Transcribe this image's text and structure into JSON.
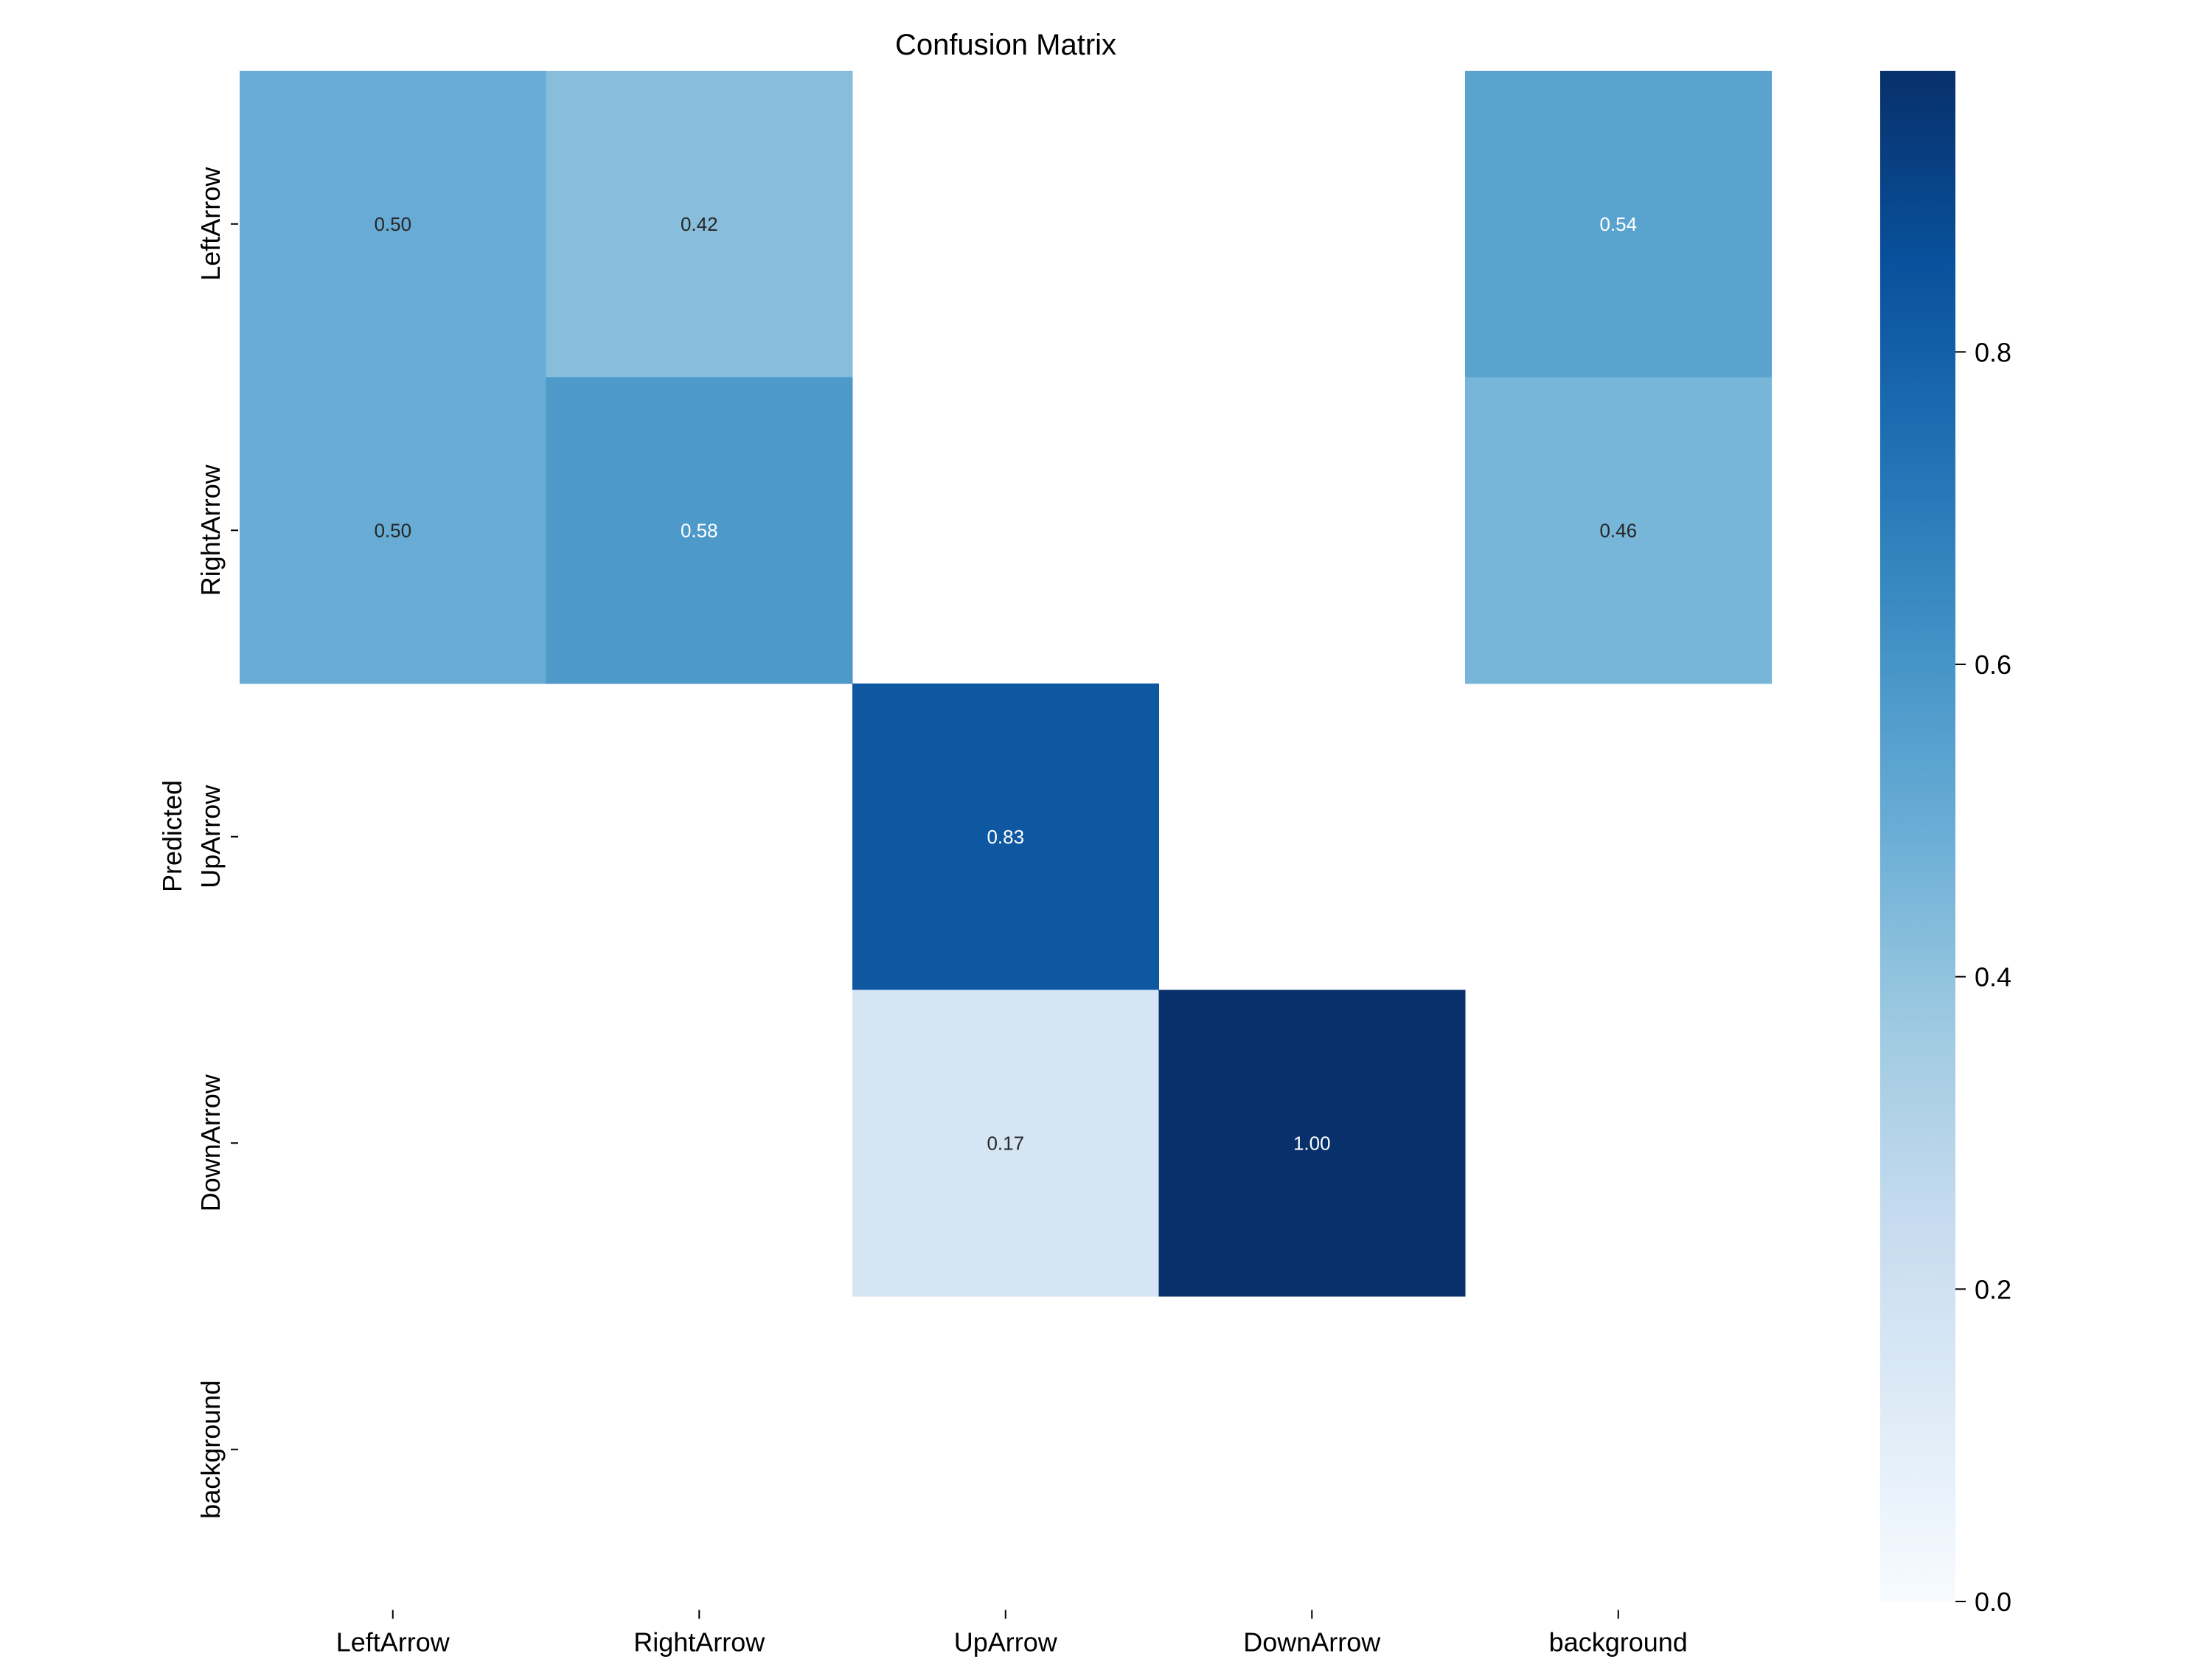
{
  "chart_data": {
    "type": "heatmap",
    "title": "Confusion Matrix",
    "ylabel": "Predicted",
    "xlabel": "",
    "x_categories": [
      "LeftArrow",
      "RightArrow",
      "UpArrow",
      "DownArrow",
      "background"
    ],
    "y_categories": [
      "LeftArrow",
      "RightArrow",
      "UpArrow",
      "DownArrow",
      "background"
    ],
    "values": [
      [
        0.5,
        0.42,
        null,
        null,
        0.54
      ],
      [
        0.5,
        0.58,
        null,
        null,
        0.46
      ],
      [
        null,
        null,
        0.83,
        null,
        null
      ],
      [
        null,
        null,
        0.17,
        1.0,
        null
      ],
      [
        null,
        null,
        null,
        null,
        null
      ]
    ],
    "colorbar": {
      "range": [
        0,
        0.98
      ],
      "ticks": [
        0.0,
        0.2,
        0.4,
        0.6,
        0.8
      ],
      "tick_labels": [
        "0.0",
        "0.2",
        "0.4",
        "0.6",
        "0.8"
      ],
      "colormap": "Blues"
    },
    "grid": false
  }
}
